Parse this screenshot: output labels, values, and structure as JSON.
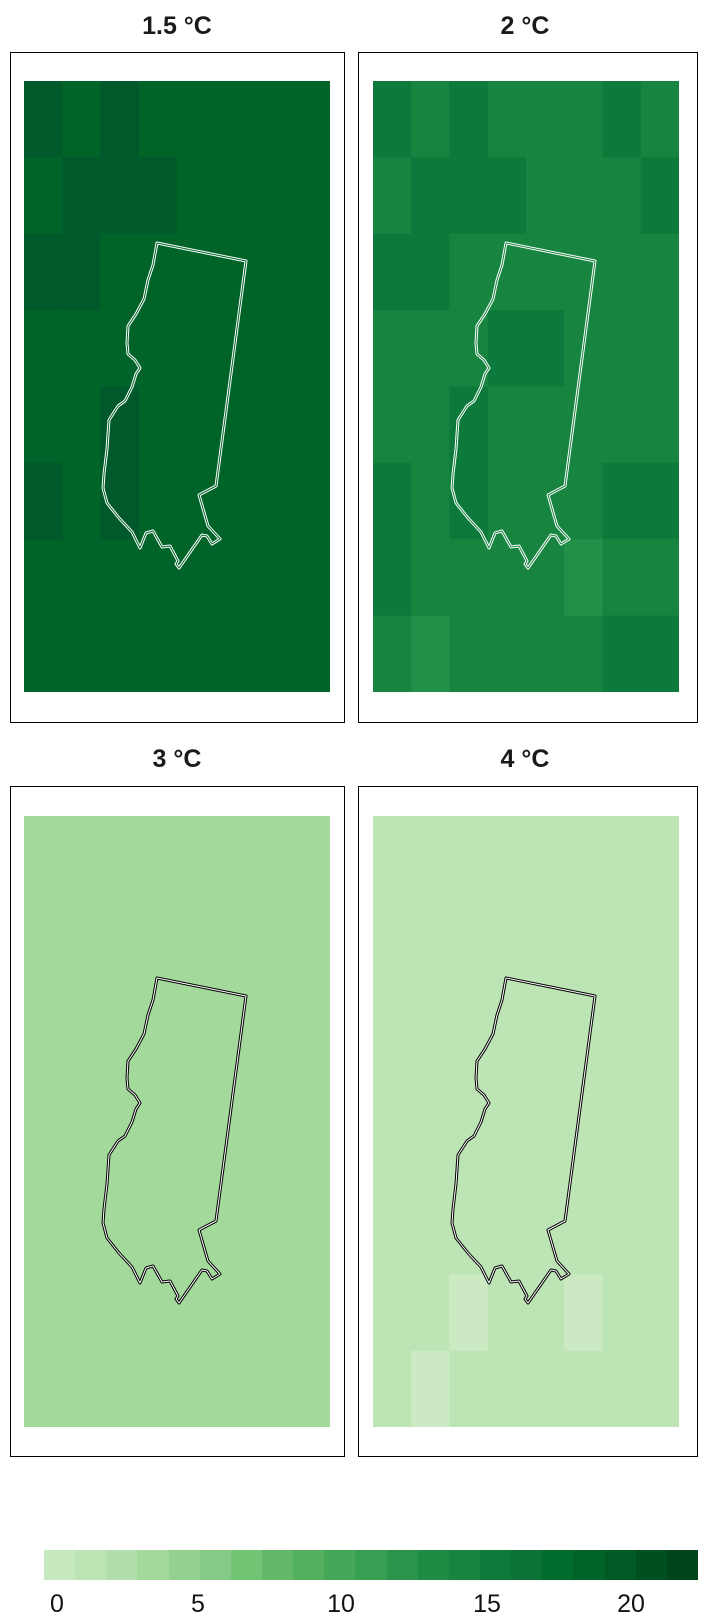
{
  "panels": [
    {
      "title": "1.5 °C",
      "rows": [
        [
          "#00592a",
          "#006428",
          "#00592a",
          "#006428",
          "#006428",
          "#006428",
          "#006428",
          "#006428"
        ],
        [
          "#006428",
          "#00592a",
          "#00592a",
          "#00592a",
          "#006428",
          "#006428",
          "#006428",
          "#006428"
        ],
        [
          "#00592a",
          "#00592a",
          "#006428",
          "#006428",
          "#006428",
          "#006428",
          "#006428",
          "#006428"
        ],
        [
          "#006428",
          "#006428",
          "#006428",
          "#006428",
          "#006428",
          "#006428",
          "#006428",
          "#006428"
        ],
        [
          "#006428",
          "#006428",
          "#00592a",
          "#006428",
          "#006428",
          "#006428",
          "#006428",
          "#006428"
        ],
        [
          "#00592a",
          "#006428",
          "#00592a",
          "#006428",
          "#006428",
          "#006428",
          "#006428",
          "#006428"
        ],
        [
          "#006428",
          "#006428",
          "#006428",
          "#006428",
          "#006428",
          "#006428",
          "#006428",
          "#006428"
        ],
        [
          "#006428",
          "#006428",
          "#006428",
          "#006428",
          "#006428",
          "#006428",
          "#006428",
          "#006428"
        ]
      ]
    },
    {
      "title": "2 °C",
      "rows": [
        [
          "#0b7a3a",
          "#17843f",
          "#0b7a3a",
          "#17843f",
          "#17843f",
          "#17843f",
          "#0b7a3a",
          "#17843f"
        ],
        [
          "#17843f",
          "#0b7a3a",
          "#0b7a3a",
          "#0b7a3a",
          "#17843f",
          "#17843f",
          "#17843f",
          "#0b7a3a"
        ],
        [
          "#0b7a3a",
          "#0b7a3a",
          "#17843f",
          "#17843f",
          "#17843f",
          "#17843f",
          "#17843f",
          "#17843f"
        ],
        [
          "#17843f",
          "#17843f",
          "#17843f",
          "#0b7a3a",
          "#0b7a3a",
          "#17843f",
          "#17843f",
          "#17843f"
        ],
        [
          "#17843f",
          "#17843f",
          "#0b7a3a",
          "#17843f",
          "#17843f",
          "#17843f",
          "#17843f",
          "#17843f"
        ],
        [
          "#0b7a3a",
          "#17843f",
          "#0b7a3a",
          "#17843f",
          "#17843f",
          "#17843f",
          "#0b7a3a",
          "#0b7a3a"
        ],
        [
          "#0b7a3a",
          "#17843f",
          "#17843f",
          "#17843f",
          "#17843f",
          "#21914a",
          "#17843f",
          "#17843f"
        ],
        [
          "#17843f",
          "#21914a",
          "#17843f",
          "#17843f",
          "#17843f",
          "#17843f",
          "#0b7a3a",
          "#0b7a3a"
        ]
      ]
    },
    {
      "title": "3 °C",
      "rows": [
        [
          "#a3d99b",
          "#a3d99b",
          "#a3d99b",
          "#a3d99b",
          "#a3d99b",
          "#a3d99b",
          "#a3d99b",
          "#a3d99b"
        ],
        [
          "#a3d99b",
          "#a3d99b",
          "#a3d99b",
          "#a3d99b",
          "#a3d99b",
          "#a3d99b",
          "#a3d99b",
          "#a3d99b"
        ],
        [
          "#a3d99b",
          "#a3d99b",
          "#a3d99b",
          "#a3d99b",
          "#a3d99b",
          "#a3d99b",
          "#a3d99b",
          "#a3d99b"
        ],
        [
          "#a3d99b",
          "#a3d99b",
          "#a3d99b",
          "#a3d99b",
          "#a3d99b",
          "#a3d99b",
          "#a3d99b",
          "#a3d99b"
        ],
        [
          "#a3d99b",
          "#a3d99b",
          "#a3d99b",
          "#a3d99b",
          "#a3d99b",
          "#a3d99b",
          "#a3d99b",
          "#a3d99b"
        ],
        [
          "#a3d99b",
          "#a3d99b",
          "#a3d99b",
          "#a3d99b",
          "#a3d99b",
          "#a3d99b",
          "#a3d99b",
          "#a3d99b"
        ],
        [
          "#a3d99b",
          "#a3d99b",
          "#a3d99b",
          "#a3d99b",
          "#a3d99b",
          "#a3d99b",
          "#a3d99b",
          "#a3d99b"
        ],
        [
          "#a3d99b",
          "#a3d99b",
          "#a3d99b",
          "#a3d99b",
          "#a3d99b",
          "#a3d99b",
          "#a3d99b",
          "#a3d99b"
        ]
      ]
    },
    {
      "title": "4 °C",
      "rows": [
        [
          "#bde4b5",
          "#bde4b5",
          "#bde4b5",
          "#bde4b5",
          "#bde4b5",
          "#bde4b5",
          "#bde4b5",
          "#bde4b5"
        ],
        [
          "#bde4b5",
          "#bde4b5",
          "#bde4b5",
          "#bde4b5",
          "#bde4b5",
          "#bde4b5",
          "#bde4b5",
          "#bde4b5"
        ],
        [
          "#bde4b5",
          "#bde4b5",
          "#bde4b5",
          "#bde4b5",
          "#bde4b5",
          "#bde4b5",
          "#bde4b5",
          "#bde4b5"
        ],
        [
          "#bde4b5",
          "#bde4b5",
          "#bde4b5",
          "#bde4b5",
          "#bde4b5",
          "#bde4b5",
          "#bde4b5",
          "#bde4b5"
        ],
        [
          "#bde4b5",
          "#bde4b5",
          "#bde4b5",
          "#bde4b5",
          "#bde4b5",
          "#bde4b5",
          "#bde4b5",
          "#bde4b5"
        ],
        [
          "#bde4b5",
          "#bde4b5",
          "#bde4b5",
          "#bde4b5",
          "#bde4b5",
          "#bde4b5",
          "#bde4b5",
          "#bde4b5"
        ],
        [
          "#bde4b5",
          "#bde4b5",
          "#cbeac4",
          "#bde4b5",
          "#bde4b5",
          "#cbeac4",
          "#bde4b5",
          "#bde4b5"
        ],
        [
          "#bde4b5",
          "#cbeac4",
          "#bde4b5",
          "#bde4b5",
          "#bde4b5",
          "#bde4b5",
          "#bde4b5",
          "#bde4b5"
        ]
      ]
    }
  ],
  "colorbar": {
    "colors": [
      "#c7e9c0",
      "#bde4b5",
      "#b1dfab",
      "#a3d99b",
      "#94d18e",
      "#85cb86",
      "#74c476",
      "#63b96a",
      "#52b05f",
      "#44a858",
      "#379f51",
      "#2a944a",
      "#1f8c43",
      "#17843f",
      "#0f7b3a",
      "#0a7335",
      "#006d2c",
      "#006428",
      "#005a24",
      "#004f1f",
      "#00441b"
    ],
    "ticks": [
      {
        "label": "0",
        "value": 0
      },
      {
        "label": "5",
        "value": 5
      },
      {
        "label": "10",
        "value": 10
      },
      {
        "label": "15",
        "value": 15
      },
      {
        "label": "20",
        "value": 20
      }
    ],
    "min": 0,
    "max": 21.5
  },
  "boundary": {
    "fill_colors": [
      "#ffffff",
      "#ffffff",
      "#000000",
      "#000000"
    ],
    "core_colors": [
      "#006428",
      "#17843f",
      "#ffffff",
      "#ffffff"
    ]
  }
}
